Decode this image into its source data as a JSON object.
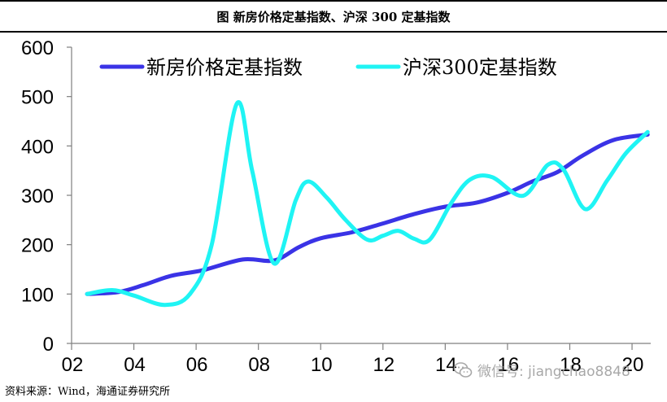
{
  "figure_title": "图  新房价格定基指数、沪深 300 定基指数",
  "source_note": "资料来源：Wind，海通证券研究所",
  "watermark_text": "微信号: jiangchao8848",
  "chart_data": {
    "type": "line",
    "title": "",
    "xlabel": "",
    "ylabel": "",
    "xlim": [
      2002,
      2020.6
    ],
    "ylim": [
      0,
      600
    ],
    "y_ticks": [
      0,
      100,
      200,
      300,
      400,
      500,
      600
    ],
    "x_ticks": [
      {
        "value": 2002,
        "label": "02"
      },
      {
        "value": 2004,
        "label": "04"
      },
      {
        "value": 2006,
        "label": "06"
      },
      {
        "value": 2008,
        "label": "08"
      },
      {
        "value": 2010,
        "label": "10"
      },
      {
        "value": 2012,
        "label": "12"
      },
      {
        "value": 2014,
        "label": "14"
      },
      {
        "value": 2016,
        "label": "16"
      },
      {
        "value": 2018,
        "label": "18"
      },
      {
        "value": 2020,
        "label": "20"
      }
    ],
    "legend_position": "top",
    "grid": false,
    "series": [
      {
        "name": "新房价格定基指数",
        "color": "#3a33e6",
        "points": [
          [
            2002.5,
            100
          ],
          [
            2003.5,
            104
          ],
          [
            2004.3,
            118
          ],
          [
            2005.2,
            137
          ],
          [
            2006.2,
            148
          ],
          [
            2007.5,
            170
          ],
          [
            2008.5,
            168
          ],
          [
            2009.3,
            195
          ],
          [
            2010.0,
            213
          ],
          [
            2011.0,
            225
          ],
          [
            2012.0,
            243
          ],
          [
            2013.0,
            262
          ],
          [
            2014.0,
            277
          ],
          [
            2015.0,
            285
          ],
          [
            2016.0,
            305
          ],
          [
            2016.8,
            328
          ],
          [
            2017.6,
            347
          ],
          [
            2018.4,
            380
          ],
          [
            2019.4,
            412
          ],
          [
            2020.5,
            423
          ]
        ]
      },
      {
        "name": "沪深300定基指数",
        "color": "#1ff4f4",
        "points": [
          [
            2002.5,
            100
          ],
          [
            2003.3,
            108
          ],
          [
            2004.0,
            97
          ],
          [
            2005.0,
            78
          ],
          [
            2005.8,
            100
          ],
          [
            2006.5,
            200
          ],
          [
            2007.3,
            485
          ],
          [
            2007.8,
            350
          ],
          [
            2008.5,
            162
          ],
          [
            2009.2,
            290
          ],
          [
            2009.6,
            328
          ],
          [
            2010.2,
            295
          ],
          [
            2010.8,
            250
          ],
          [
            2011.5,
            210
          ],
          [
            2012.0,
            218
          ],
          [
            2012.5,
            228
          ],
          [
            2013.0,
            212
          ],
          [
            2013.5,
            210
          ],
          [
            2014.2,
            285
          ],
          [
            2014.8,
            332
          ],
          [
            2015.5,
            337
          ],
          [
            2016.5,
            299
          ],
          [
            2017.3,
            362
          ],
          [
            2017.8,
            352
          ],
          [
            2018.5,
            272
          ],
          [
            2019.2,
            330
          ],
          [
            2019.8,
            385
          ],
          [
            2020.5,
            428
          ]
        ]
      }
    ]
  }
}
